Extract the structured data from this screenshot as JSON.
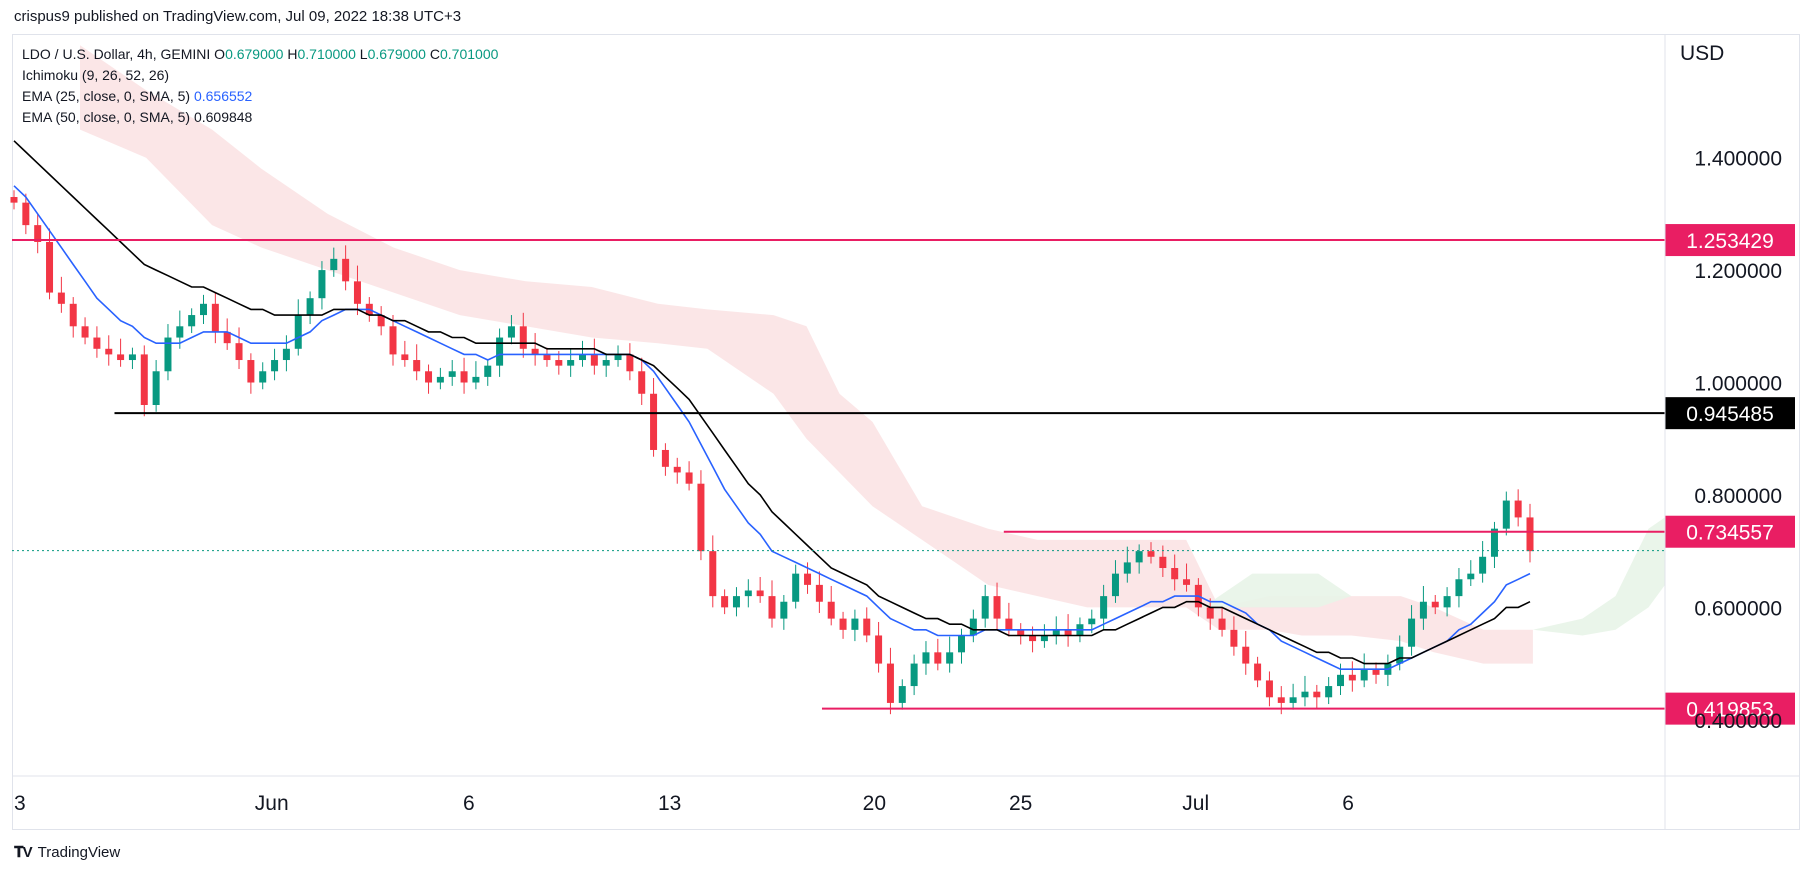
{
  "header": {
    "published": "crispus9 published on TradingView.com, Jul 09, 2022 18:38 UTC+3"
  },
  "legend": {
    "symbol": "LDO / U.S. Dollar, 4h, GEMINI",
    "o_label": "O",
    "o": "0.679000",
    "h_label": "H",
    "h": "0.710000",
    "l_label": "L",
    "l": "0.679000",
    "c_label": "C",
    "c": "0.701000",
    "ichimoku": "Ichimoku (9, 26, 52, 26)",
    "ema25": "EMA (25, close, 0, SMA, 5)",
    "ema25_value": "0.656552",
    "ema50": "EMA (50, close, 0, SMA, 5)",
    "ema50_value": "0.609848"
  },
  "axis": {
    "currency": "USD"
  },
  "footer": {
    "brand": "TradingView"
  },
  "colors": {
    "up": "#089981",
    "down": "#f23645",
    "ema25": "#2962ff",
    "ema50": "#000000",
    "resistance": "#e91e63",
    "support_black": "#000000",
    "cloud_red": "#fbe3e4",
    "cloud_green": "#e8f4e8"
  },
  "chart_data": {
    "type": "candlestick",
    "ylim": [
      0.3,
      1.62
    ],
    "y_ticks": [
      {
        "value": 1.4,
        "label": "1.400000"
      },
      {
        "value": 1.2,
        "label": "1.200000"
      },
      {
        "value": 1.0,
        "label": "1.000000"
      },
      {
        "value": 0.8,
        "label": "0.800000"
      },
      {
        "value": 0.6,
        "label": "0.600000"
      },
      {
        "value": 0.4,
        "label": "0.400000"
      }
    ],
    "x_ticks": [
      {
        "pos": 0,
        "label": "3"
      },
      {
        "pos": 0.17,
        "label": "Jun"
      },
      {
        "pos": 0.3,
        "label": "6"
      },
      {
        "pos": 0.4325,
        "label": "13"
      },
      {
        "pos": 0.5675,
        "label": "20"
      },
      {
        "pos": 0.664,
        "label": "25"
      },
      {
        "pos": 0.7795,
        "label": "Jul"
      },
      {
        "pos": 0.88,
        "label": "6"
      }
    ],
    "levels": [
      {
        "value": 1.253429,
        "label": "1.253429",
        "color": "#e91e63",
        "from": 0,
        "to": 1
      },
      {
        "value": 0.945485,
        "label": "0.945485",
        "color": "#000000",
        "from": 0.062,
        "to": 1
      },
      {
        "value": 0.734557,
        "label": "0.734557",
        "color": "#e91e63",
        "from": 0.6,
        "to": 1
      },
      {
        "value": 0.419853,
        "label": "0.419853",
        "color": "#e91e63",
        "from": 0.49,
        "to": 1
      }
    ],
    "last_price": 0.701,
    "closes": [
      1.32,
      1.28,
      1.25,
      1.16,
      1.14,
      1.1,
      1.08,
      1.06,
      1.05,
      1.04,
      1.05,
      0.96,
      1.02,
      1.08,
      1.1,
      1.12,
      1.14,
      1.09,
      1.07,
      1.04,
      1.0,
      1.02,
      1.04,
      1.06,
      1.12,
      1.15,
      1.2,
      1.22,
      1.18,
      1.14,
      1.12,
      1.1,
      1.05,
      1.04,
      1.02,
      1.0,
      1.01,
      1.02,
      1.0,
      1.01,
      1.03,
      1.08,
      1.1,
      1.06,
      1.05,
      1.04,
      1.03,
      1.04,
      1.05,
      1.03,
      1.04,
      1.05,
      1.02,
      0.98,
      0.88,
      0.85,
      0.84,
      0.82,
      0.7,
      0.62,
      0.6,
      0.62,
      0.63,
      0.62,
      0.58,
      0.61,
      0.66,
      0.64,
      0.61,
      0.58,
      0.56,
      0.58,
      0.55,
      0.5,
      0.43,
      0.46,
      0.5,
      0.52,
      0.5,
      0.52,
      0.55,
      0.58,
      0.62,
      0.58,
      0.56,
      0.55,
      0.54,
      0.55,
      0.56,
      0.55,
      0.57,
      0.58,
      0.62,
      0.66,
      0.68,
      0.7,
      0.69,
      0.67,
      0.65,
      0.64,
      0.6,
      0.58,
      0.56,
      0.53,
      0.5,
      0.47,
      0.44,
      0.43,
      0.44,
      0.45,
      0.44,
      0.46,
      0.48,
      0.47,
      0.49,
      0.48,
      0.5,
      0.53,
      0.58,
      0.61,
      0.6,
      0.62,
      0.65,
      0.66,
      0.69,
      0.74,
      0.79,
      0.76,
      0.7
    ],
    "ema25": [
      1.35,
      1.33,
      1.3,
      1.27,
      1.24,
      1.21,
      1.18,
      1.15,
      1.13,
      1.11,
      1.1,
      1.08,
      1.07,
      1.07,
      1.07,
      1.08,
      1.09,
      1.09,
      1.09,
      1.08,
      1.07,
      1.07,
      1.07,
      1.07,
      1.08,
      1.09,
      1.11,
      1.12,
      1.13,
      1.13,
      1.13,
      1.12,
      1.11,
      1.1,
      1.09,
      1.08,
      1.07,
      1.06,
      1.05,
      1.05,
      1.04,
      1.05,
      1.05,
      1.05,
      1.05,
      1.05,
      1.05,
      1.05,
      1.05,
      1.05,
      1.05,
      1.05,
      1.05,
      1.04,
      1.02,
      0.99,
      0.96,
      0.93,
      0.89,
      0.85,
      0.81,
      0.78,
      0.75,
      0.73,
      0.7,
      0.69,
      0.68,
      0.67,
      0.66,
      0.65,
      0.64,
      0.63,
      0.62,
      0.6,
      0.58,
      0.57,
      0.56,
      0.56,
      0.55,
      0.55,
      0.55,
      0.55,
      0.56,
      0.56,
      0.56,
      0.56,
      0.56,
      0.56,
      0.56,
      0.56,
      0.56,
      0.56,
      0.57,
      0.58,
      0.59,
      0.6,
      0.61,
      0.61,
      0.62,
      0.62,
      0.62,
      0.61,
      0.61,
      0.6,
      0.59,
      0.57,
      0.56,
      0.54,
      0.53,
      0.52,
      0.51,
      0.5,
      0.49,
      0.49,
      0.49,
      0.49,
      0.49,
      0.5,
      0.51,
      0.52,
      0.53,
      0.54,
      0.56,
      0.57,
      0.59,
      0.61,
      0.64,
      0.65,
      0.66
    ],
    "ema50": [
      1.43,
      1.41,
      1.39,
      1.37,
      1.35,
      1.33,
      1.31,
      1.29,
      1.27,
      1.25,
      1.23,
      1.21,
      1.2,
      1.19,
      1.18,
      1.17,
      1.17,
      1.16,
      1.15,
      1.14,
      1.13,
      1.13,
      1.12,
      1.12,
      1.12,
      1.12,
      1.12,
      1.13,
      1.13,
      1.13,
      1.12,
      1.12,
      1.11,
      1.11,
      1.1,
      1.09,
      1.09,
      1.08,
      1.08,
      1.07,
      1.07,
      1.07,
      1.07,
      1.07,
      1.07,
      1.06,
      1.06,
      1.06,
      1.06,
      1.06,
      1.05,
      1.05,
      1.05,
      1.04,
      1.03,
      1.01,
      0.99,
      0.97,
      0.94,
      0.91,
      0.88,
      0.85,
      0.82,
      0.8,
      0.77,
      0.75,
      0.73,
      0.71,
      0.69,
      0.67,
      0.66,
      0.65,
      0.64,
      0.62,
      0.61,
      0.6,
      0.59,
      0.58,
      0.58,
      0.57,
      0.57,
      0.56,
      0.56,
      0.56,
      0.55,
      0.55,
      0.55,
      0.55,
      0.55,
      0.55,
      0.55,
      0.55,
      0.56,
      0.56,
      0.57,
      0.58,
      0.59,
      0.6,
      0.6,
      0.61,
      0.61,
      0.6,
      0.6,
      0.59,
      0.58,
      0.57,
      0.56,
      0.55,
      0.54,
      0.53,
      0.52,
      0.52,
      0.51,
      0.51,
      0.5,
      0.5,
      0.5,
      0.51,
      0.51,
      0.52,
      0.53,
      0.54,
      0.55,
      0.56,
      0.57,
      0.58,
      0.6,
      0.6,
      0.61
    ],
    "cloud_red": [
      [
        0.04,
        1.6,
        1.45
      ],
      [
        0.08,
        1.52,
        1.4
      ],
      [
        0.12,
        1.45,
        1.28
      ],
      [
        0.15,
        1.38,
        1.24
      ],
      [
        0.19,
        1.3,
        1.2
      ],
      [
        0.23,
        1.24,
        1.16
      ],
      [
        0.27,
        1.2,
        1.12
      ],
      [
        0.31,
        1.18,
        1.1
      ],
      [
        0.35,
        1.17,
        1.08
      ],
      [
        0.39,
        1.14,
        1.07
      ],
      [
        0.42,
        1.13,
        1.06
      ],
      [
        0.46,
        1.12,
        0.98
      ],
      [
        0.48,
        1.1,
        0.9
      ],
      [
        0.5,
        0.98,
        0.84
      ],
      [
        0.52,
        0.93,
        0.78
      ],
      [
        0.55,
        0.78,
        0.72
      ],
      [
        0.59,
        0.74,
        0.64
      ],
      [
        0.62,
        0.72,
        0.62
      ],
      [
        0.65,
        0.72,
        0.6
      ],
      [
        0.68,
        0.72,
        0.6
      ],
      [
        0.71,
        0.72,
        0.6
      ],
      [
        0.73,
        0.6,
        0.56
      ],
      [
        0.76,
        0.62,
        0.56
      ],
      [
        0.78,
        0.62,
        0.55
      ],
      [
        0.81,
        0.62,
        0.55
      ],
      [
        0.84,
        0.62,
        0.54
      ],
      [
        0.86,
        0.6,
        0.52
      ],
      [
        0.89,
        0.56,
        0.5
      ],
      [
        0.92,
        0.56,
        0.5
      ]
    ],
    "cloud_green": [
      [
        0.72,
        0.6,
        0.6
      ],
      [
        0.75,
        0.66,
        0.6
      ],
      [
        0.79,
        0.66,
        0.6
      ],
      [
        0.81,
        0.62,
        0.62
      ],
      [
        0.92,
        0.56,
        0.56
      ],
      [
        0.95,
        0.58,
        0.55
      ],
      [
        0.97,
        0.62,
        0.56
      ],
      [
        0.99,
        0.74,
        0.6
      ],
      [
        1.0,
        0.76,
        0.64
      ]
    ]
  }
}
